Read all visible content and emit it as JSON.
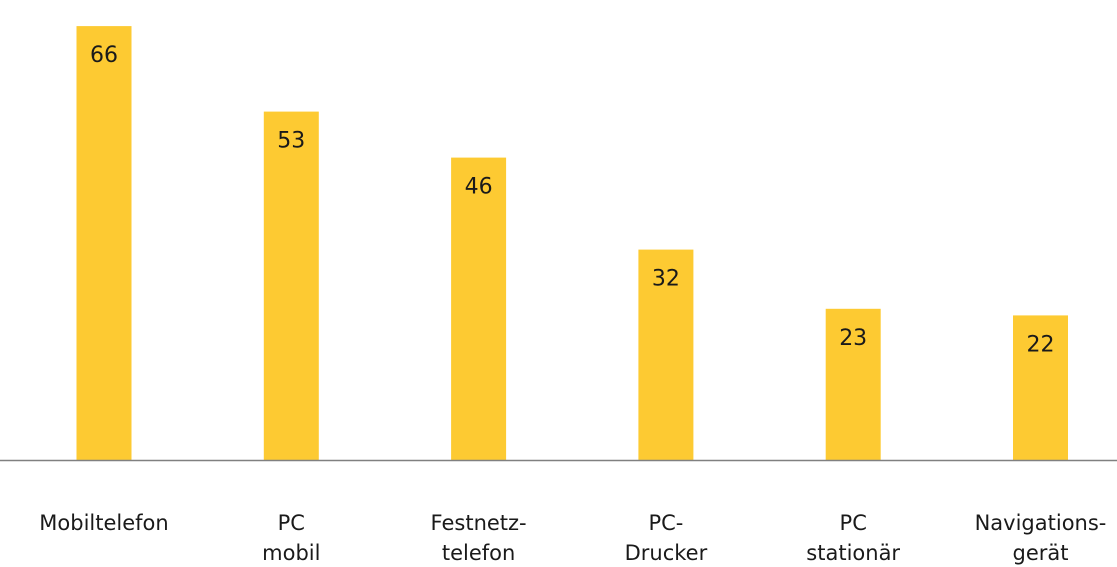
{
  "chart_data": {
    "type": "bar",
    "categories": [
      [
        "Mobiltelefon"
      ],
      [
        "PC",
        "mobil"
      ],
      [
        "Festnetz-",
        "telefon"
      ],
      [
        "PC-",
        "Drucker"
      ],
      [
        "PC",
        "stationär"
      ],
      [
        "Navigations-",
        "gerät"
      ]
    ],
    "values": [
      66,
      53,
      46,
      32,
      23,
      22
    ],
    "data_labels": [
      "66",
      "53",
      "46",
      "32",
      "23",
      "22"
    ],
    "title": "",
    "xlabel": "",
    "ylabel": "",
    "ylim": [
      0,
      68
    ],
    "grid": false,
    "legend": "none",
    "colors": {
      "bar": "#FDCA32",
      "axis": "#808080",
      "text": "#1a1a1a"
    }
  }
}
